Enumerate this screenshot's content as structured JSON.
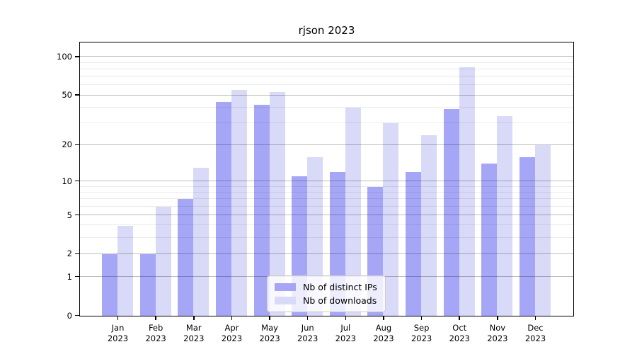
{
  "figure": {
    "title": "rjson 2023"
  },
  "chart_data": {
    "type": "bar",
    "title": "rjson 2023",
    "months": [
      "Jan",
      "Feb",
      "Mar",
      "Apr",
      "May",
      "Jun",
      "Jul",
      "Aug",
      "Sep",
      "Oct",
      "Nov",
      "Dec"
    ],
    "year": "2023",
    "series": [
      {
        "name": "Nb of distinct IPs",
        "color": "#a6a6f6",
        "values": [
          2,
          2,
          7,
          44,
          42,
          11,
          12,
          9,
          12,
          39,
          14,
          16
        ]
      },
      {
        "name": "Nb of downloads",
        "color": "#d9d9f8",
        "values": [
          4,
          6,
          13,
          55,
          53,
          16,
          40,
          30,
          24,
          83,
          34,
          20
        ]
      }
    ],
    "y_axis": {
      "scale": "log1p",
      "major_ticks": [
        0,
        1,
        2,
        5,
        10,
        20,
        50,
        100
      ],
      "minor_ticks": [
        3,
        4,
        6,
        7,
        8,
        9,
        30,
        40,
        60,
        70,
        80,
        90
      ],
      "ylim": [
        0,
        128
      ]
    },
    "grid": true,
    "legend_position": "lower center",
    "colors": {
      "bar_ips": "#a6a6f6",
      "bar_downloads": "#d9d9f8",
      "axis": "#000000",
      "grid_major": "#bdbdbd",
      "grid_minor": "#ededed"
    }
  }
}
